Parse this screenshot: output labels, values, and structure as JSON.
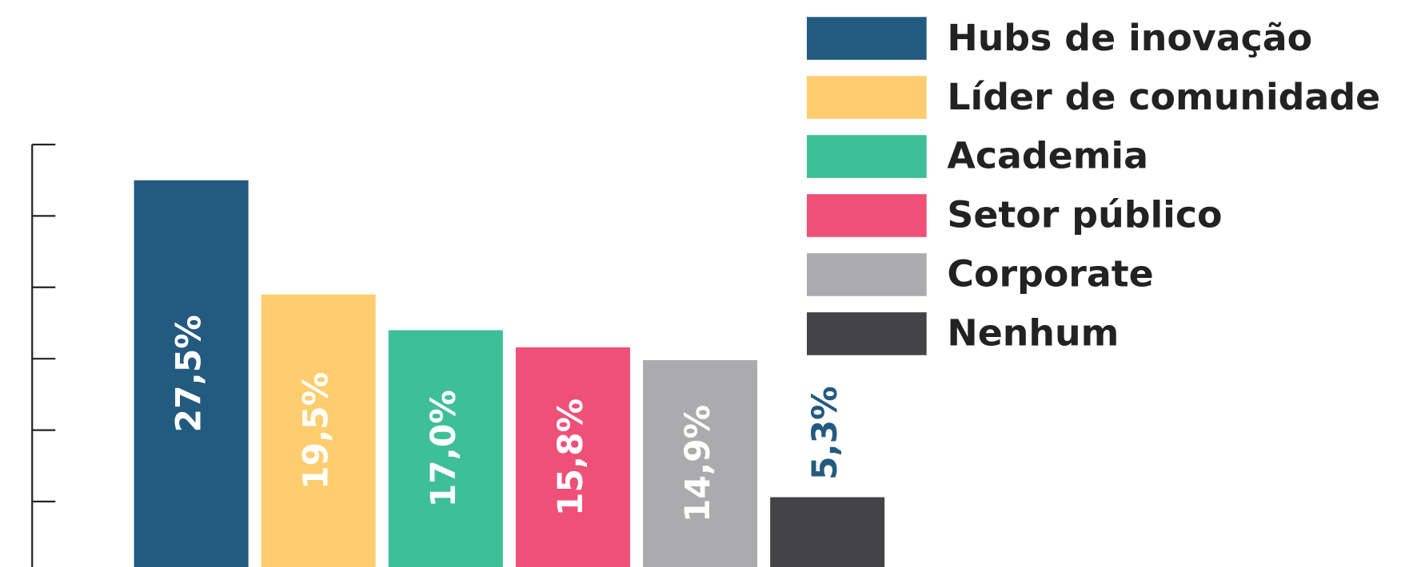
{
  "chart_data": {
    "type": "bar",
    "categories": [
      "Hubs de inovação",
      "Líder de comunidade",
      "Academia",
      "Setor público",
      "Corporate",
      "Nenhum"
    ],
    "values": [
      27.5,
      19.5,
      17.0,
      15.8,
      14.9,
      5.3
    ],
    "value_labels": [
      "27,5%",
      "19,5%",
      "17,0%",
      "15,8%",
      "14,9%",
      "5,3%"
    ],
    "colors": [
      "#235a80",
      "#fdcd6e",
      "#3ebf98",
      "#ef5077",
      "#ababae",
      "#444446"
    ],
    "ylim": [
      0,
      30
    ],
    "yticks": [
      5,
      10,
      15,
      20,
      25,
      30
    ],
    "legend": "top-right"
  }
}
